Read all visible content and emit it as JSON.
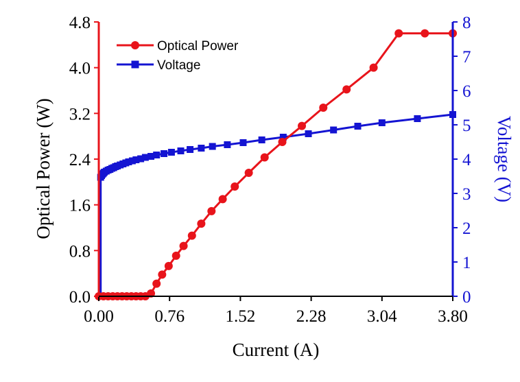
{
  "chart_data": {
    "type": "line",
    "title": "",
    "xlabel": "Current (A)",
    "ylabel": "Optical Power (W)",
    "y2label": "Voltage (V)",
    "xlim": [
      0,
      3.8
    ],
    "ylim": [
      0,
      4.8
    ],
    "y2lim": [
      0,
      8
    ],
    "xticks": [
      "0.00",
      "0.76",
      "1.52",
      "2.28",
      "3.04",
      "3.80"
    ],
    "yticks": [
      "0.0",
      "0.8",
      "1.6",
      "2.4",
      "3.2",
      "4.0",
      "4.8"
    ],
    "y2ticks": [
      "0",
      "1",
      "2",
      "3",
      "4",
      "5",
      "6",
      "7",
      "8"
    ],
    "legend_position": "top-left",
    "colors": {
      "power": "#e8141b",
      "voltage": "#1414d2",
      "axis_left": "#e8141b",
      "axis_right": "#1414d2",
      "axis_bottom": "#000000"
    },
    "series": [
      {
        "name": "Optical Power",
        "axis": "left",
        "marker": "circle",
        "x": [
          0.0,
          0.05,
          0.1,
          0.15,
          0.2,
          0.25,
          0.3,
          0.35,
          0.4,
          0.45,
          0.5,
          0.56,
          0.62,
          0.68,
          0.75,
          0.83,
          0.91,
          1.0,
          1.1,
          1.21,
          1.33,
          1.46,
          1.61,
          1.78,
          1.97,
          2.18,
          2.41,
          2.66,
          2.95,
          3.22,
          3.5,
          3.8
        ],
        "values": [
          0.0,
          0.0,
          0.0,
          0.0,
          0.0,
          0.0,
          0.0,
          0.0,
          0.0,
          0.0,
          0.0,
          0.05,
          0.22,
          0.38,
          0.53,
          0.71,
          0.88,
          1.06,
          1.27,
          1.49,
          1.7,
          1.92,
          2.16,
          2.43,
          2.7,
          2.98,
          3.3,
          3.62,
          4.0,
          4.6,
          4.6,
          4.6
        ]
      },
      {
        "name": "Voltage",
        "axis": "right",
        "marker": "square",
        "x": [
          0.02,
          0.03,
          0.04,
          0.05,
          0.06,
          0.08,
          0.1,
          0.12,
          0.14,
          0.16,
          0.18,
          0.2,
          0.23,
          0.26,
          0.29,
          0.32,
          0.36,
          0.4,
          0.45,
          0.5,
          0.56,
          0.62,
          0.7,
          0.78,
          0.88,
          0.98,
          1.1,
          1.22,
          1.38,
          1.55,
          1.75,
          1.98,
          2.25,
          2.52,
          2.78,
          3.04,
          3.42,
          3.8
        ],
        "values": [
          3.47,
          3.52,
          3.56,
          3.59,
          3.62,
          3.65,
          3.68,
          3.7,
          3.73,
          3.75,
          3.78,
          3.8,
          3.83,
          3.86,
          3.89,
          3.92,
          3.95,
          3.98,
          4.01,
          4.05,
          4.08,
          4.12,
          4.16,
          4.2,
          4.24,
          4.28,
          4.32,
          4.37,
          4.42,
          4.48,
          4.56,
          4.64,
          4.74,
          4.85,
          4.96,
          5.06,
          5.18,
          5.3
        ]
      }
    ]
  }
}
